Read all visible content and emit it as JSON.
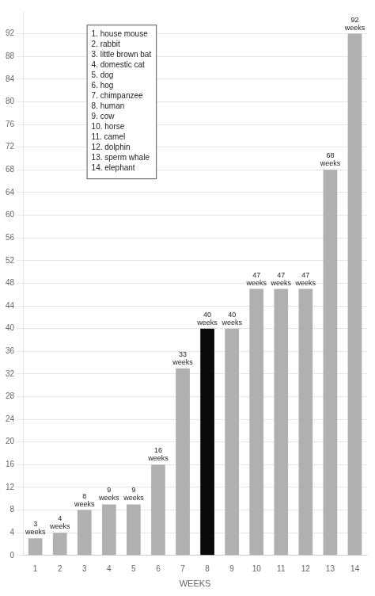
{
  "chart_data": {
    "type": "bar",
    "categories": [
      1,
      2,
      3,
      4,
      5,
      6,
      7,
      8,
      9,
      10,
      11,
      12,
      13,
      14
    ],
    "values": [
      3,
      4,
      8,
      9,
      9,
      16,
      33,
      40,
      40,
      47,
      47,
      47,
      68,
      92
    ],
    "colors": [
      "#b0b0b0",
      "#b0b0b0",
      "#b0b0b0",
      "#b0b0b0",
      "#b0b0b0",
      "#b0b0b0",
      "#b0b0b0",
      "#0a0a0a",
      "#b0b0b0",
      "#b0b0b0",
      "#b0b0b0",
      "#b0b0b0",
      "#b0b0b0",
      "#b0b0b0"
    ],
    "data_labels": true,
    "value_labels": [
      "3\nweeks",
      "4\nweeks",
      "8\nweeks",
      "9\nweeks",
      "9\nweeks",
      "16\nweeks",
      "33\nweeks",
      "40\nweeks",
      "40\nweeks",
      "47\nweeks",
      "47\nweeks",
      "47\nweeks",
      "68\nweeks",
      "92\nweeks"
    ],
    "xlabel": "WEEKS",
    "ylim": [
      0,
      96
    ],
    "yticks": [
      0,
      4,
      8,
      12,
      16,
      20,
      24,
      28,
      32,
      36,
      40,
      44,
      48,
      52,
      56,
      60,
      64,
      68,
      72,
      76,
      80,
      84,
      88,
      92
    ],
    "grid": true,
    "annotations": [
      "1. house mouse",
      "2. rabbit",
      "3. little brown bat",
      "4. domestic cat",
      "5. dog",
      "6. hog",
      "7. chimpanzee",
      "8. human",
      "9. cow",
      "10. horse",
      "11. camel",
      "12. dolphin",
      "13. sperm whale",
      "14. elephant"
    ]
  }
}
